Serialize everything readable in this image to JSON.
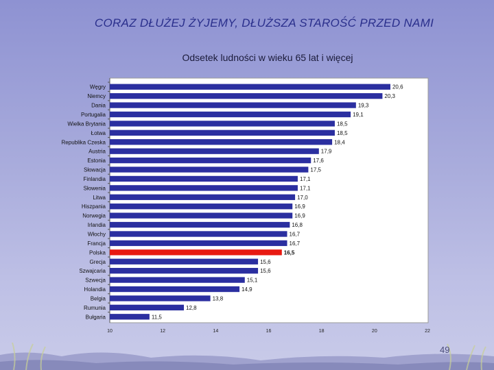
{
  "slide": {
    "title": "CORAZ DŁUŻEJ ŻYJEMY, DŁUŻSZA STAROŚĆ PRZED NAMI",
    "subtitle": "Odsetek ludności w wieku 65 lat i więcej",
    "page_number": "49"
  },
  "colors": {
    "bar": "#2b2fa0",
    "highlight": "#e81a12",
    "plot_background": "#ffffff",
    "title": "#2a2f8c"
  },
  "decoration_icons": [
    "grass-stalks-icon"
  ],
  "chart_data": {
    "type": "bar",
    "orientation": "horizontal",
    "title": "Odsetek ludności w wieku 65 lat i więcej",
    "xlabel": "",
    "ylabel": "",
    "xlim": [
      10,
      22
    ],
    "xticks": [
      "10",
      "12",
      "14",
      "16",
      "18",
      "20",
      "22"
    ],
    "grid": false,
    "legend": "none",
    "highlight_category": "Polska",
    "categories": [
      "Węgry",
      "Niemcy",
      "Dania",
      "Portugalia",
      "Wielka Brytania",
      "Łotwa",
      "Republika Czeska",
      "Austria",
      "Estonia",
      "Słowacja",
      "Finlandia",
      "Słowenia",
      "Litwa",
      "Hiszpania",
      "Norwegia",
      "Irlandia",
      "Włochy",
      "Francja",
      "Polska",
      "Grecja",
      "Szwajcaria",
      "Szwecja",
      "Holandia",
      "Belgia",
      "Rumunia",
      "Bułgaria"
    ],
    "values": [
      20.6,
      20.3,
      19.3,
      19.1,
      18.5,
      18.5,
      18.4,
      17.9,
      17.6,
      17.5,
      17.1,
      17.1,
      17.0,
      16.9,
      16.9,
      16.8,
      16.7,
      16.7,
      16.5,
      15.6,
      15.6,
      15.1,
      14.9,
      13.8,
      12.8,
      11.5
    ],
    "value_labels": [
      "20,6",
      "20,3",
      "19,3",
      "19,1",
      "18,5",
      "18,5",
      "18,4",
      "17,9",
      "17,6",
      "17,5",
      "17,1",
      "17,1",
      "17,0",
      "16,9",
      "16,9",
      "16,8",
      "16,7",
      "16,7",
      "16,5",
      "15,6",
      "15,6",
      "15,1",
      "14,9",
      "13,8",
      "12,8",
      "11,5"
    ]
  }
}
